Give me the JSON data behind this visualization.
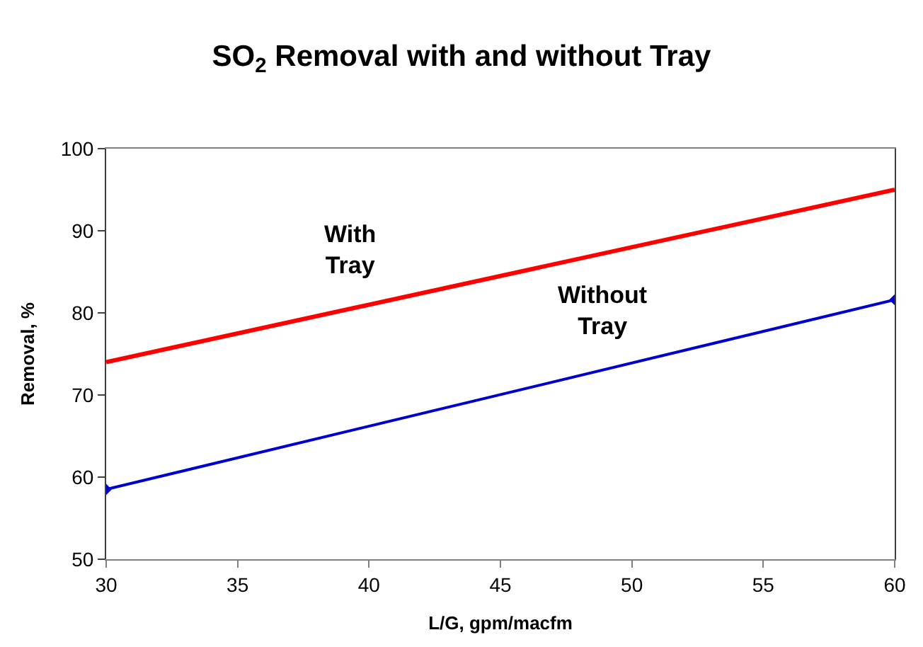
{
  "chart_data": {
    "type": "line",
    "title": "SO$_{2}$ Removal with and without Tray",
    "xlabel": "L/G, gpm/macfm",
    "ylabel": "Removal, %",
    "x": [
      30,
      60
    ],
    "xlim": [
      30,
      60
    ],
    "xticks": [
      30,
      35,
      40,
      45,
      50,
      55,
      60
    ],
    "ylim": [
      50,
      100
    ],
    "yticks": [
      50,
      60,
      70,
      80,
      90,
      100
    ],
    "legend": false,
    "series": [
      {
        "name": "With\nTray",
        "color": "#ff0000",
        "values": [
          74,
          95
        ]
      },
      {
        "name": "Without\nTray",
        "color": "#0000cc",
        "values": [
          58.5,
          81.6
        ],
        "marker": "diamond"
      }
    ]
  }
}
